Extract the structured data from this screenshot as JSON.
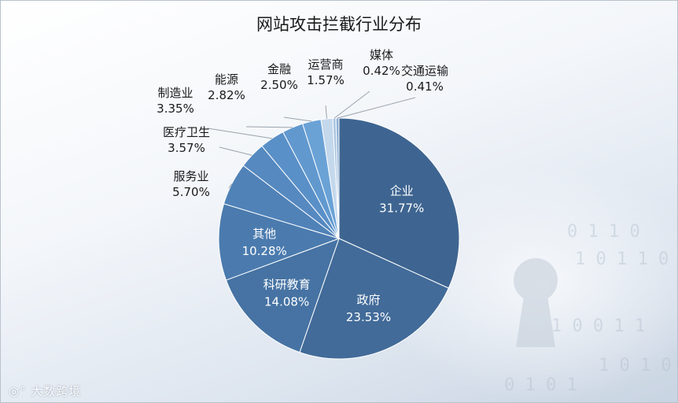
{
  "chart_data": {
    "type": "pie",
    "title": "网站攻击拦截行业分布",
    "slices": [
      {
        "label": "企业",
        "value_text": "31.77%",
        "value": 31.77,
        "color": "#3e6591"
      },
      {
        "label": "政府",
        "value_text": "23.53%",
        "value": 23.53,
        "color": "#426b99"
      },
      {
        "label": "科研教育",
        "value_text": "14.08%",
        "value": 14.08,
        "color": "#4673a3"
      },
      {
        "label": "其他",
        "value_text": "10.28%",
        "value": 10.28,
        "color": "#4b7bae"
      },
      {
        "label": "服务业",
        "value_text": "5.70%",
        "value": 5.7,
        "color": "#5082b8"
      },
      {
        "label": "医疗卫生",
        "value_text": "3.57%",
        "value": 3.57,
        "color": "#5589c0"
      },
      {
        "label": "制造业",
        "value_text": "3.35%",
        "value": 3.35,
        "color": "#5a90c8"
      },
      {
        "label": "能源",
        "value_text": "2.82%",
        "value": 2.82,
        "color": "#6199cf"
      },
      {
        "label": "金融",
        "value_text": "2.50%",
        "value": 2.5,
        "color": "#6aa2d6"
      },
      {
        "label": "运营商",
        "value_text": "1.57%",
        "value": 1.57,
        "color": "#c4d8ec"
      },
      {
        "label": "媒体",
        "value_text": "0.42%",
        "value": 0.42,
        "color": "#a9c4e0"
      },
      {
        "label": "交通运输",
        "value_text": "0.41%",
        "value": 0.41,
        "color": "#8fb1d6"
      }
    ]
  },
  "watermark": {
    "text": "大数跨境"
  },
  "colors": {
    "text": "#1a1a1a",
    "inside_label": "#ffffff",
    "leader": "#9aa3ad"
  }
}
